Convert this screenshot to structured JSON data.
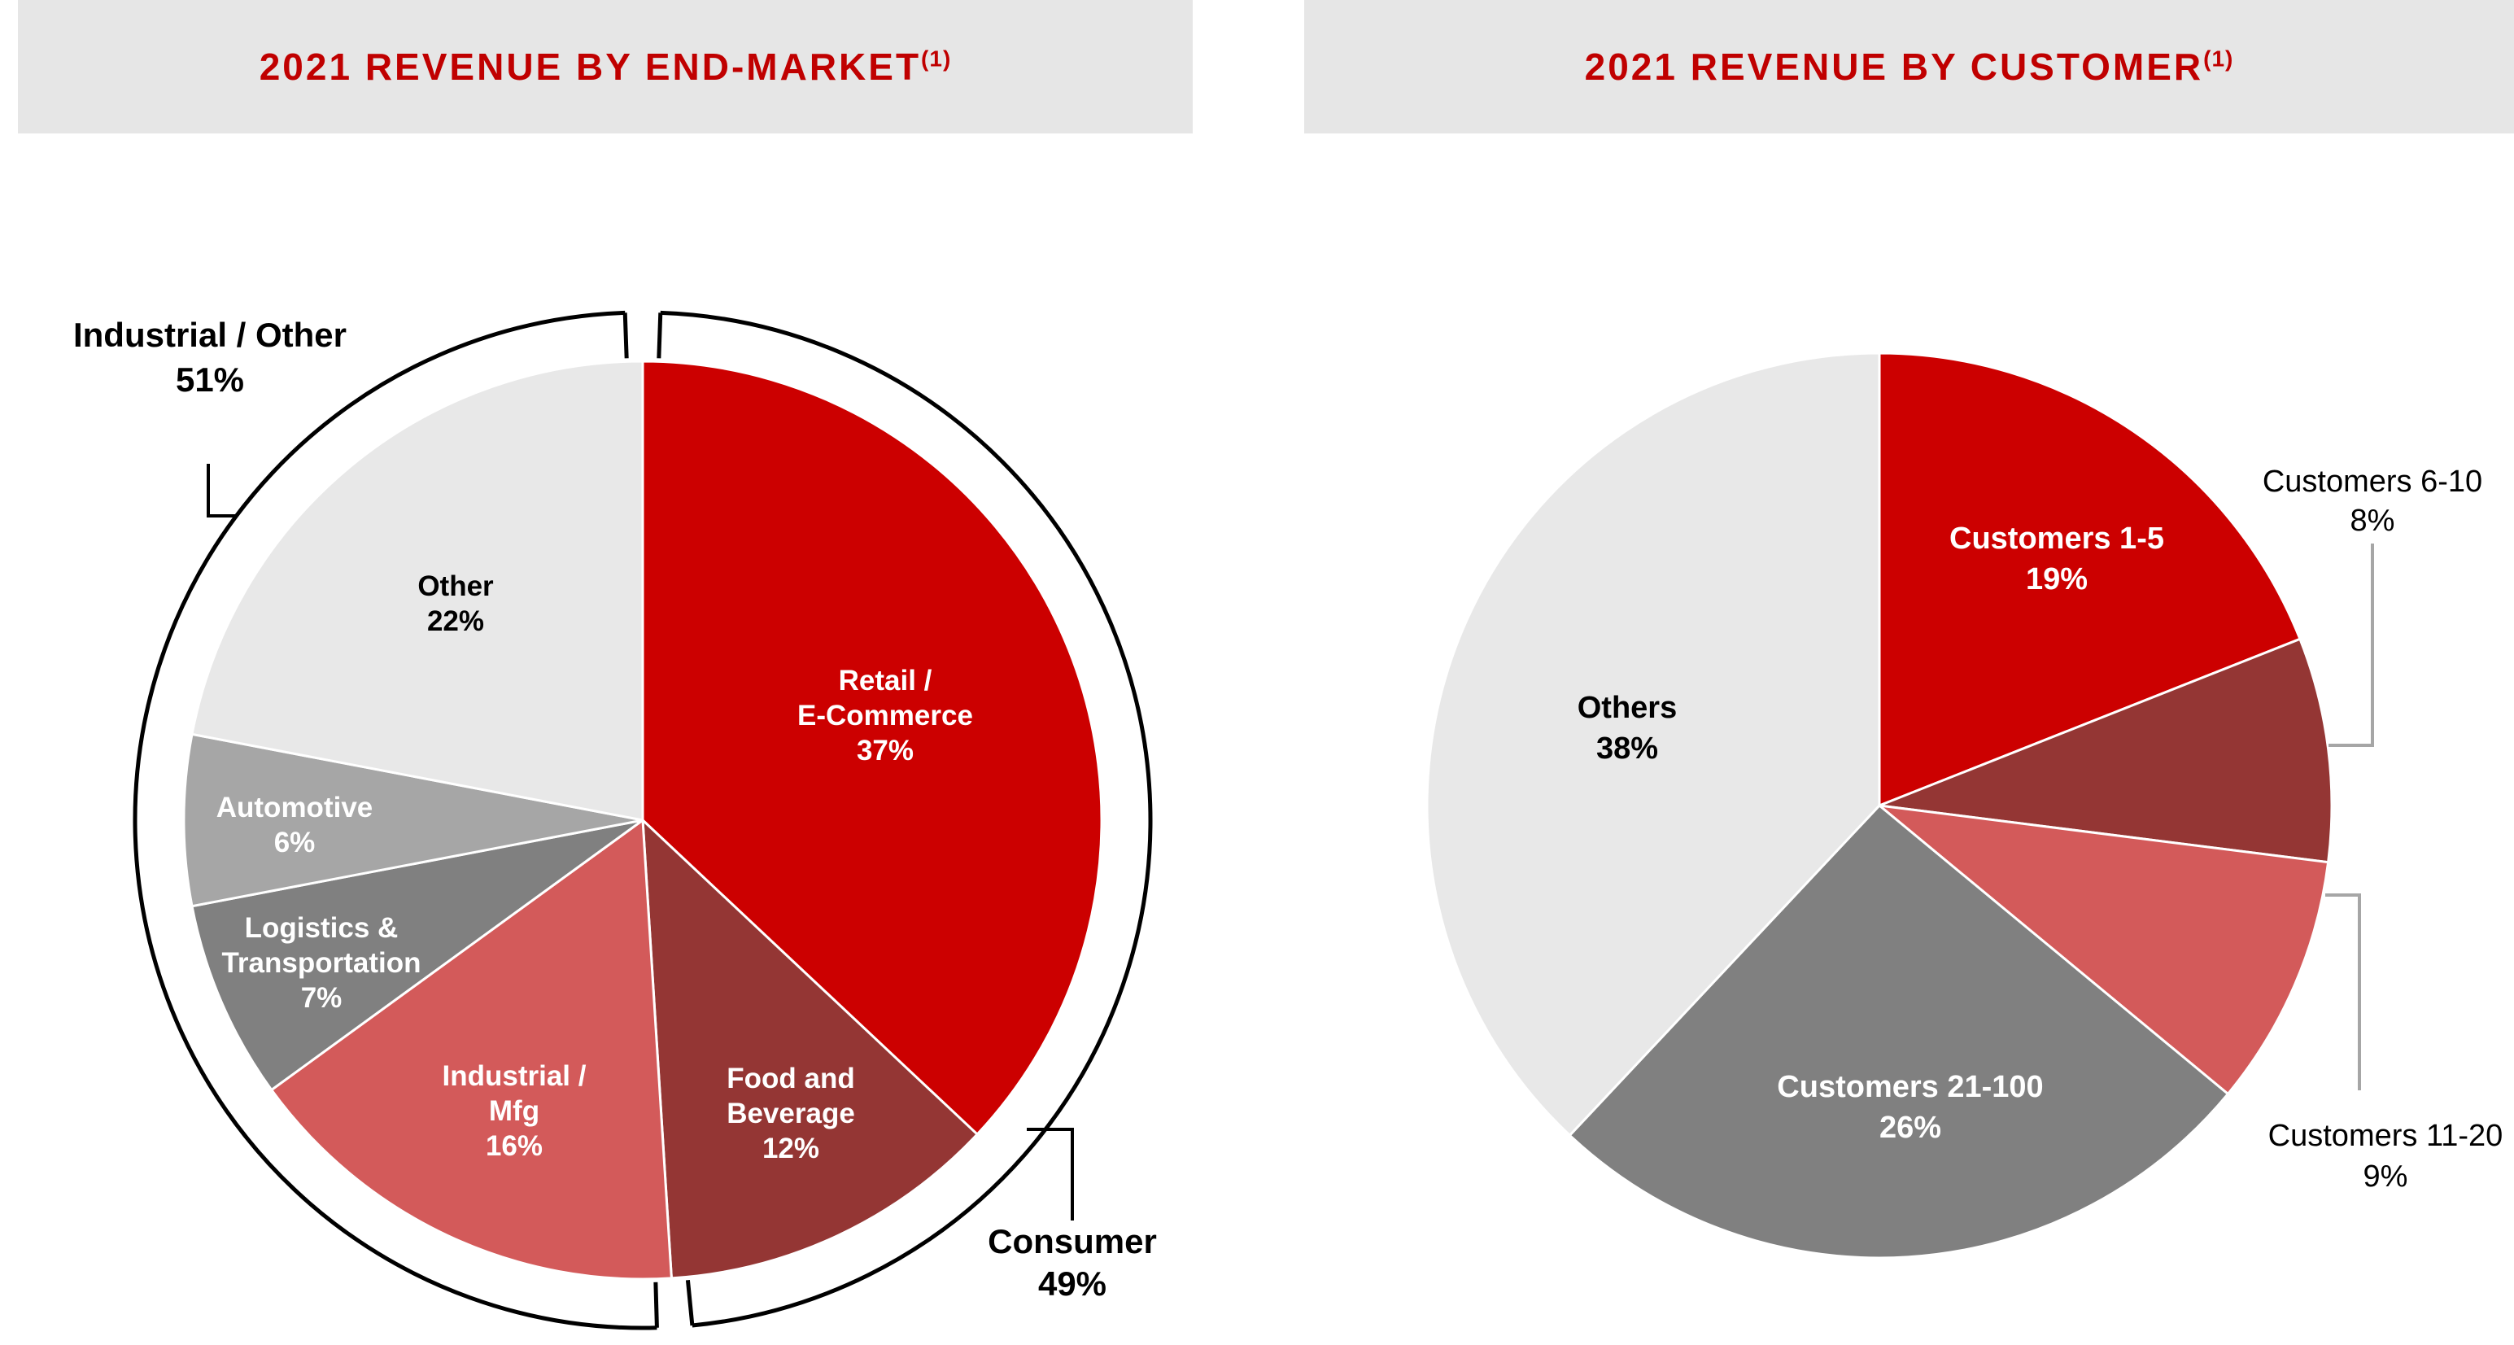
{
  "header_left": {
    "title": "2021 REVENUE BY END-MARKET",
    "footnote": "(1)"
  },
  "header_right": {
    "title": "2021 REVENUE BY CUSTOMER",
    "footnote": "(1)"
  },
  "colors": {
    "header_bg": "#e6e6e6",
    "title_red": "#c00000",
    "red": "#cc0000",
    "dark_red": "#943634",
    "light_red": "#d35a5a",
    "light_gray": "#e8e8e8",
    "mid_gray": "#a6a6a6",
    "dark_gray": "#808080"
  },
  "chart_data": [
    {
      "type": "pie",
      "title": "2021 REVENUE BY END-MARKET(1)",
      "slices": [
        {
          "name": "Retail / E-Commerce",
          "lines": [
            "Retail /",
            "E-Commerce",
            "37%"
          ],
          "value": 37,
          "color": "#cc0000",
          "text_color": "#ffffff"
        },
        {
          "name": "Food and Beverage",
          "lines": [
            "Food and",
            "Beverage",
            "12%"
          ],
          "value": 12,
          "color": "#943634",
          "text_color": "#ffffff"
        },
        {
          "name": "Industrial / Mfg",
          "lines": [
            "Industrial /",
            "Mfg",
            "16%"
          ],
          "value": 16,
          "color": "#d35a5a",
          "text_color": "#ffffff"
        },
        {
          "name": "Logistics & Transportation",
          "lines": [
            "Logistics &",
            "Transportation",
            "7%"
          ],
          "value": 7,
          "color": "#808080",
          "text_color": "#ffffff"
        },
        {
          "name": "Automotive",
          "lines": [
            "Automotive",
            "6%"
          ],
          "value": 6,
          "color": "#a6a6a6",
          "text_color": "#ffffff"
        },
        {
          "name": "Other",
          "lines": [
            "Other",
            "22%"
          ],
          "value": 22,
          "color": "#e8e8e8",
          "text_color": "#000000"
        }
      ],
      "groups": [
        {
          "name": "Consumer",
          "lines": [
            "Consumer",
            "49%"
          ],
          "value": 49
        },
        {
          "name": "Industrial / Other",
          "lines": [
            "Industrial / Other",
            "51%"
          ],
          "value": 51
        }
      ]
    },
    {
      "type": "pie",
      "title": "2021 REVENUE BY CUSTOMER(1)",
      "slices": [
        {
          "name": "Customers 1-5",
          "lines": [
            "Customers 1-5",
            "19%"
          ],
          "value": 19,
          "color": "#cc0000",
          "text_color": "#ffffff",
          "label_style": "inside"
        },
        {
          "name": "Customers 6-10",
          "lines": [
            "Customers 6-10",
            "8%"
          ],
          "value": 8,
          "color": "#943634",
          "text_color": "#000000",
          "label_style": "outside"
        },
        {
          "name": "Customers 11-20",
          "lines": [
            "Customers 11-20",
            "9%"
          ],
          "value": 9,
          "color": "#d35a5a",
          "text_color": "#000000",
          "label_style": "outside"
        },
        {
          "name": "Customers 21-100",
          "lines": [
            "Customers 21-100",
            "26%"
          ],
          "value": 26,
          "color": "#808080",
          "text_color": "#ffffff",
          "label_style": "inside"
        },
        {
          "name": "Others",
          "lines": [
            "Others",
            "38%"
          ],
          "value": 38,
          "color": "#e8e8e8",
          "text_color": "#000000",
          "label_style": "inside"
        }
      ]
    }
  ]
}
